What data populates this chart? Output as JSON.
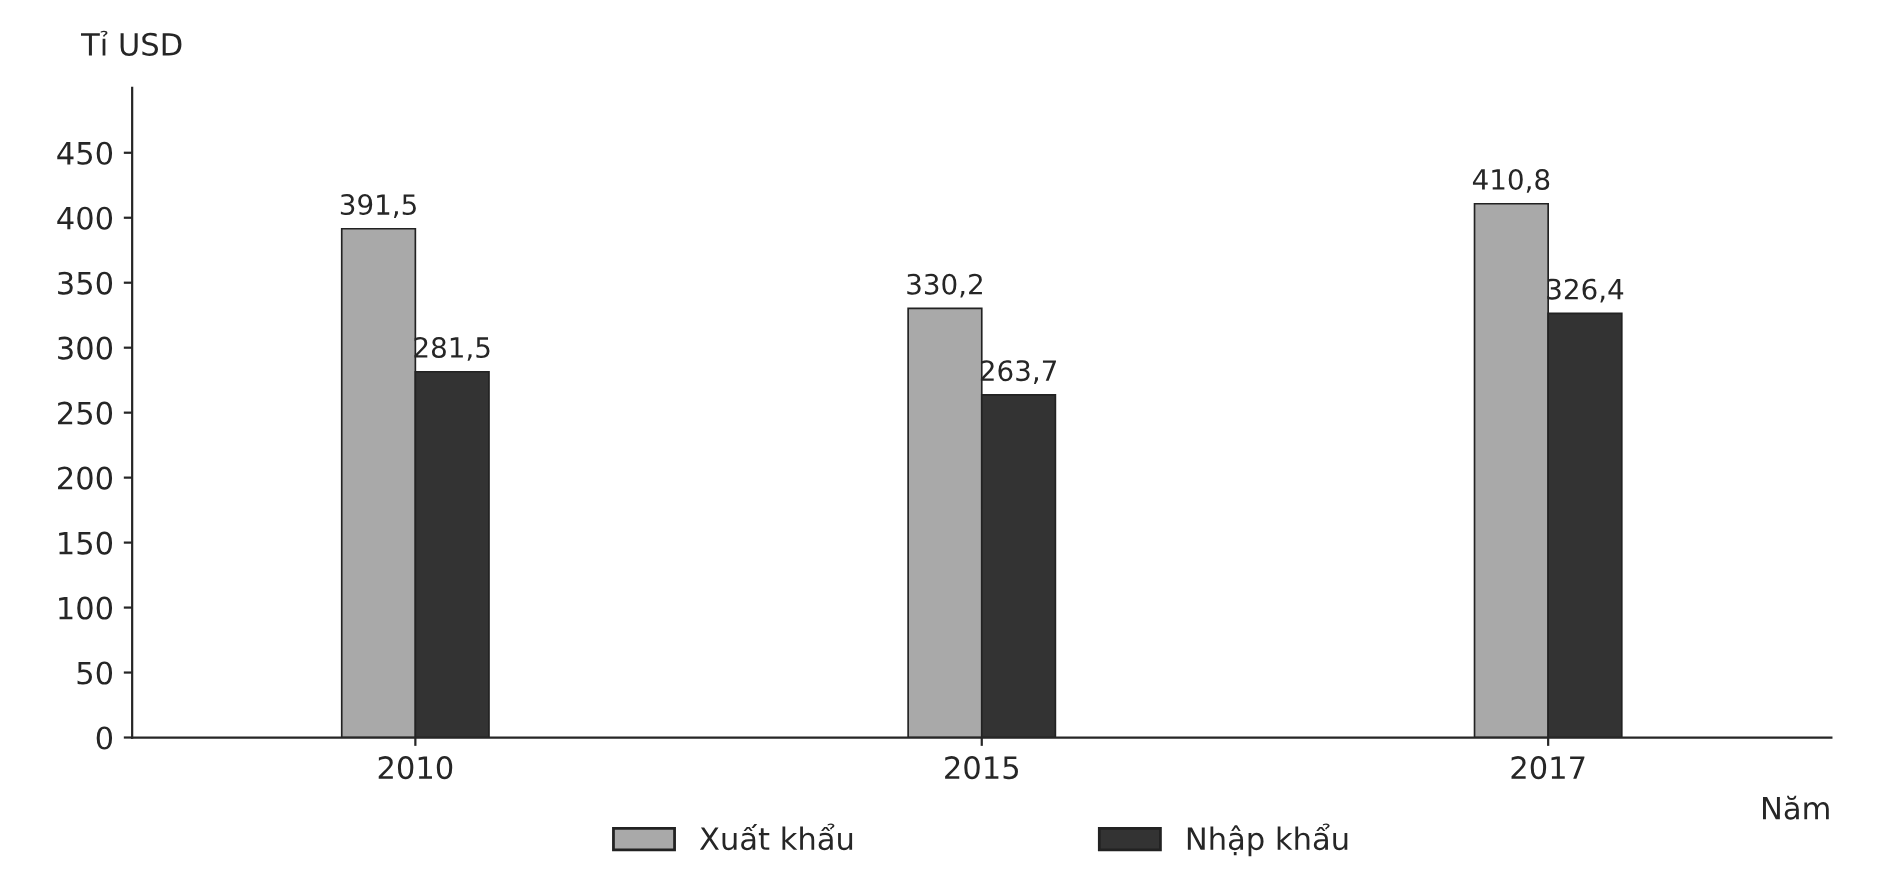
{
  "chart_data": {
    "type": "bar",
    "xlabel": "Năm",
    "ylabel": "Tỉ USD",
    "categories": [
      "2010",
      "2015",
      "2017"
    ],
    "series": [
      {
        "name": "Xuất khẩu",
        "color": "#a9a9a9",
        "values": [
          391.5,
          330.2,
          410.8
        ],
        "value_labels": [
          "391,5",
          "330,2",
          "410,8"
        ]
      },
      {
        "name": "Nhập khẩu",
        "color": "#333333",
        "values": [
          281.5,
          263.7,
          326.4
        ],
        "value_labels": [
          "281,5",
          "263,7",
          "326,4"
        ]
      }
    ],
    "ylim": [
      0,
      500
    ],
    "yticks": [
      0,
      50,
      100,
      150,
      200,
      250,
      300,
      350,
      400,
      450
    ],
    "grid": false,
    "legend": "bottom"
  }
}
